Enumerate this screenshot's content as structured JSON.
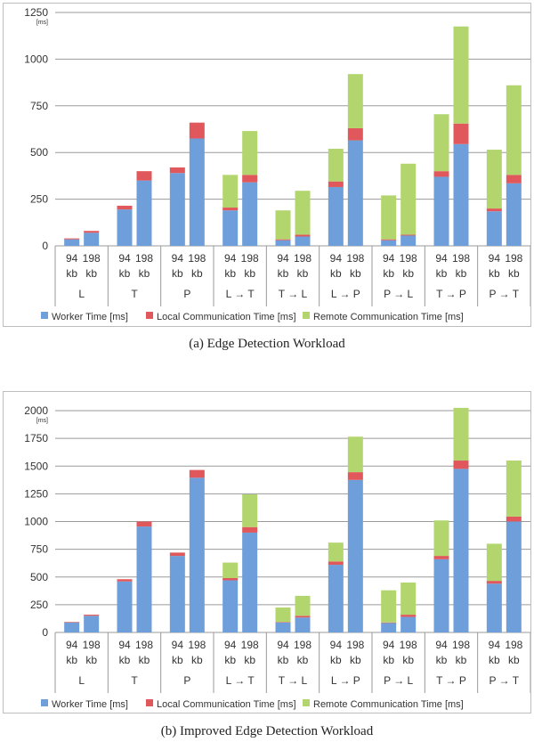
{
  "captions": {
    "a": "(a) Edge Detection Workload",
    "b": "(b) Improved Edge Detection Workload"
  },
  "colors": {
    "worker": "#6f9fdb",
    "local": "#e0585b",
    "remote": "#b3d56e"
  },
  "chart_data": [
    {
      "type": "bar",
      "stacked": true,
      "unit_label": "[ms]",
      "groups": [
        "L",
        "T",
        "P",
        "L → T",
        "T → L",
        "L → P",
        "P → L",
        "T → P",
        "P → T"
      ],
      "subcategories": [
        "94 kb",
        "198 kb"
      ],
      "yticks": [
        0,
        250,
        500,
        750,
        1000,
        1250
      ],
      "ylim": [
        0,
        1250
      ],
      "grid": true,
      "legend_position": "bottom",
      "series": [
        {
          "name": "Worker Time [ms]",
          "values": [
            35,
            70,
            195,
            350,
            390,
            575,
            190,
            340,
            30,
            50,
            315,
            565,
            30,
            55,
            370,
            545,
            185,
            335
          ]
        },
        {
          "name": "Local Communication Time [ms]",
          "values": [
            5,
            10,
            20,
            50,
            30,
            85,
            15,
            40,
            5,
            10,
            30,
            65,
            5,
            5,
            30,
            110,
            15,
            45
          ]
        },
        {
          "name": "Remote Communication Time [ms]",
          "values": [
            0,
            0,
            0,
            0,
            0,
            0,
            175,
            235,
            155,
            235,
            175,
            290,
            235,
            380,
            305,
            520,
            315,
            480
          ]
        }
      ]
    },
    {
      "type": "bar",
      "stacked": true,
      "unit_label": "[ms]",
      "groups": [
        "L",
        "T",
        "P",
        "L → T",
        "T → L",
        "L → P",
        "P → L",
        "T → P",
        "P → T"
      ],
      "subcategories": [
        "94 kb",
        "198 kb"
      ],
      "yticks": [
        0,
        250,
        500,
        750,
        1000,
        1250,
        1500,
        1750,
        2000
      ],
      "ylim": [
        0,
        2000
      ],
      "grid": true,
      "legend_position": "bottom",
      "series": [
        {
          "name": "Worker Time [ms]",
          "values": [
            90,
            150,
            460,
            955,
            690,
            1395,
            470,
            900,
            90,
            135,
            610,
            1375,
            85,
            140,
            660,
            1475,
            440,
            1000
          ]
        },
        {
          "name": "Local Communication Time [ms]",
          "values": [
            5,
            10,
            20,
            45,
            30,
            70,
            20,
            50,
            5,
            15,
            30,
            70,
            5,
            20,
            30,
            75,
            25,
            45
          ]
        },
        {
          "name": "Remote Communication Time [ms]",
          "values": [
            0,
            0,
            0,
            0,
            0,
            0,
            140,
            295,
            130,
            180,
            170,
            320,
            290,
            290,
            320,
            475,
            335,
            505
          ]
        }
      ]
    }
  ]
}
